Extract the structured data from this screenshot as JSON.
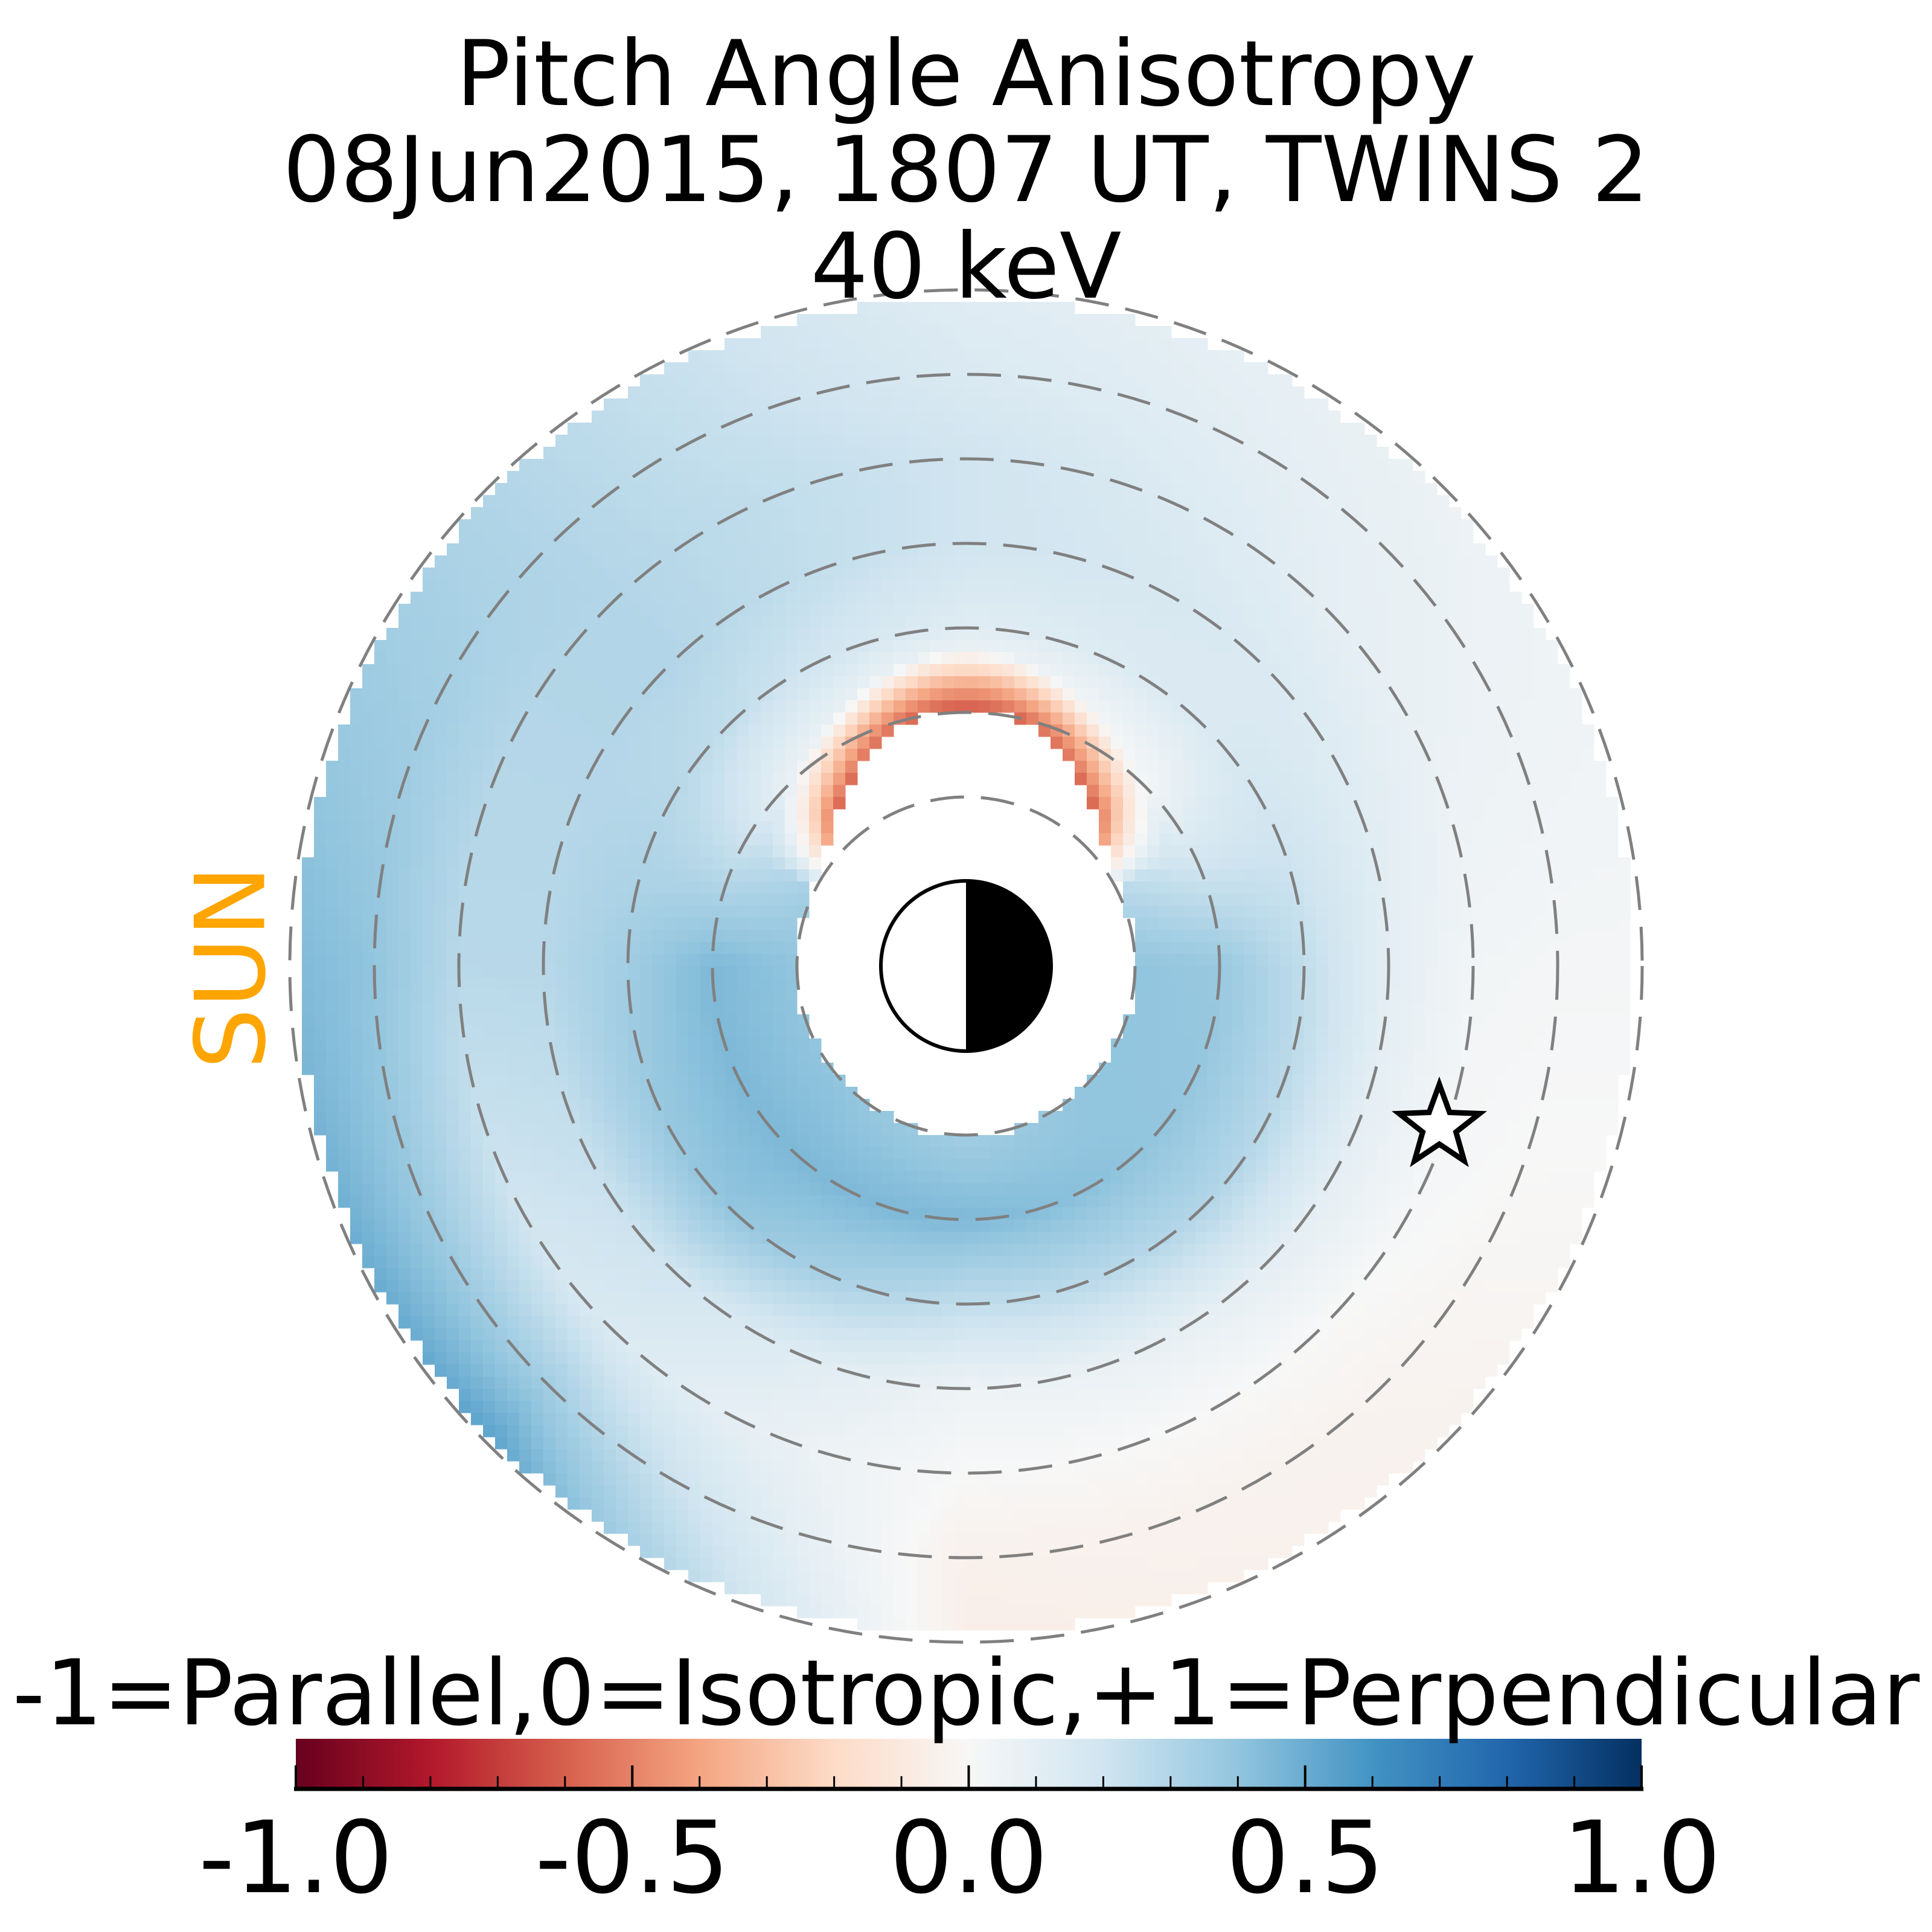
{
  "title": {
    "line1": "Pitch Angle Anisotropy",
    "line2": "08Jun2015, 1807 UT,  TWINS 2",
    "line3": "40 keV"
  },
  "sun_label": "SUN",
  "colors": {
    "sun_label": "#ffa500",
    "grid": "#808080",
    "earth": "#000000"
  },
  "chart_data": {
    "type": "heatmap",
    "projection": "polar (equatorial plane, sun to the left)",
    "colormap": "RdBu",
    "colormap_stops": [
      "#67001f",
      "#b2182b",
      "#d6604d",
      "#f4a582",
      "#fddbc7",
      "#f7f7f7",
      "#d1e5f0",
      "#92c5de",
      "#4393c3",
      "#2166ac",
      "#053061"
    ],
    "value_range": [
      -1.0,
      1.0
    ],
    "grid_circles_RE": [
      2,
      3,
      4,
      5,
      6,
      7,
      8
    ],
    "data_extent_RE": [
      2,
      7.9
    ],
    "field_samples": {
      "angles_deg": [
        0,
        45,
        90,
        135,
        180,
        225,
        270,
        315
      ],
      "radii_RE": [
        2,
        3,
        4,
        5,
        6,
        7,
        8
      ],
      "values": [
        [
          0.4,
          0.38,
          0.25,
          0.1,
          0.03,
          0.02,
          0.02
        ],
        [
          0.2,
          0.02,
          0.15,
          0.15,
          0.1,
          0.08,
          0.06
        ],
        [
          0.0,
          -0.1,
          0.12,
          0.2,
          0.2,
          0.15,
          0.12
        ],
        [
          0.3,
          0.08,
          0.25,
          0.3,
          0.3,
          0.3,
          0.3
        ],
        [
          0.4,
          0.45,
          0.35,
          0.28,
          0.28,
          0.4,
          0.45
        ],
        [
          0.4,
          0.45,
          0.4,
          0.2,
          0.15,
          0.35,
          0.55
        ],
        [
          0.35,
          0.45,
          0.25,
          0.05,
          0.0,
          -0.05,
          -0.06
        ],
        [
          0.4,
          0.4,
          0.3,
          0.1,
          0.0,
          -0.03,
          -0.04
        ]
      ],
      "dayside_near_earth_minimum": -0.6
    },
    "colorbar": {
      "label": "-1=Parallel,0=Isotropic,+1=Perpendicular",
      "ticks": [
        "-1.0",
        "-0.5",
        "0.0",
        "0.5",
        "1.0"
      ],
      "tick_values": [
        -1.0,
        -0.5,
        0.0,
        0.5,
        1.0
      ],
      "minor_step": 0.1
    },
    "satellite_marker": {
      "symbol": "star",
      "x_RE": 5.6,
      "y_RE": -1.9
    }
  }
}
